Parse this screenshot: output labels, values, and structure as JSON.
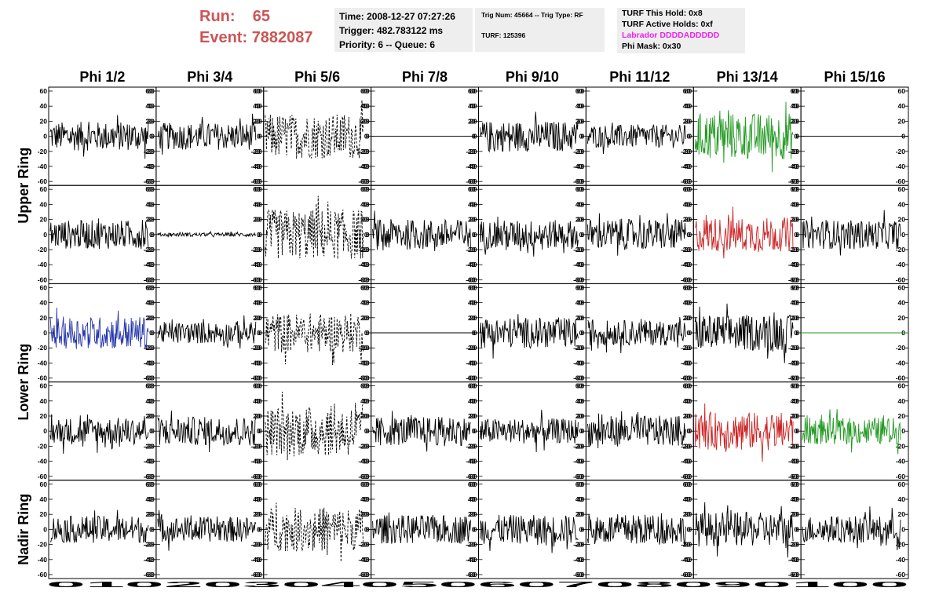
{
  "header": {
    "run_label": "Run:",
    "run_value": "65",
    "event_label": "Event:",
    "event_value": "7882087"
  },
  "info_box_1": {
    "time": "Time: 2008-12-27 07:27:26",
    "trigger": "Trigger: 482.783122 ms",
    "priority": "Priority: 6 -- Queue: 6"
  },
  "info_box_2": {
    "trig": "Trig Num: 45664 -- Trig Type: RF",
    "turf": "TURF: 125396"
  },
  "info_box_3": {
    "this_hold": "TURF This Hold: 0x8",
    "active_holds": "TURF Active Holds: 0xf",
    "labrador": "Labrador DDDDADDDDD",
    "phi_mask": "Phi Mask: 0x30"
  },
  "colors": {
    "header_red": "#cc5555",
    "labrador_magenta": "#ee22ee",
    "trace_black": "#000000",
    "trace_green": "#229922",
    "trace_red": "#cc2222",
    "trace_blue": "#2233aa"
  },
  "chart_data": {
    "type": "line",
    "columns": [
      "Phi 1/2",
      "Phi 3/4",
      "Phi 5/6",
      "Phi 7/8",
      "Phi 9/10",
      "Phi 11/12",
      "Phi 13/14",
      "Phi 15/16"
    ],
    "rows": [
      "Upper Ring",
      "Lower Ring",
      "Nadir Ring"
    ],
    "panel_rows": 5,
    "ylim": [
      -60,
      60
    ],
    "yticks": [
      -60,
      -40,
      -20,
      0,
      20,
      40,
      60
    ],
    "xlim": [
      0,
      100
    ],
    "xtick_labels": [
      "0",
      "10",
      "20",
      "30",
      "40",
      "50",
      "60",
      "70",
      "80",
      "90",
      "100"
    ],
    "bottom_axis_text": "0102030405060708090100",
    "grid": false,
    "panels": [
      [
        {
          "style": "solid",
          "color": "black",
          "amp": 16
        },
        {
          "style": "solid",
          "color": "black",
          "amp": 15
        },
        {
          "style": "dashed",
          "color": "black",
          "amp": 25
        },
        {
          "style": "flat",
          "color": "black",
          "amp": 0
        },
        {
          "style": "solid",
          "color": "black",
          "amp": 17
        },
        {
          "style": "solid",
          "color": "black",
          "amp": 13
        },
        {
          "style": "solid",
          "color": "green",
          "amp": 26
        },
        {
          "style": "flat",
          "color": "black",
          "amp": 0
        }
      ],
      [
        {
          "style": "solid",
          "color": "black",
          "amp": 16
        },
        {
          "style": "solid",
          "color": "black",
          "amp": 2
        },
        {
          "style": "dashed",
          "color": "black",
          "amp": 28
        },
        {
          "style": "solid",
          "color": "black",
          "amp": 17
        },
        {
          "style": "solid",
          "color": "black",
          "amp": 16
        },
        {
          "style": "solid",
          "color": "black",
          "amp": 17
        },
        {
          "style": "solid",
          "color": "red",
          "amp": 19
        },
        {
          "style": "solid",
          "color": "black",
          "amp": 16
        }
      ],
      [
        {
          "style": "solid",
          "color": "blue",
          "amp": 18
        },
        {
          "style": "solid",
          "color": "black",
          "amp": 12
        },
        {
          "style": "dashed",
          "color": "black",
          "amp": 22
        },
        {
          "style": "flat",
          "color": "black",
          "amp": 0
        },
        {
          "style": "solid",
          "color": "black",
          "amp": 17
        },
        {
          "style": "solid",
          "color": "black",
          "amp": 14
        },
        {
          "style": "solid",
          "color": "black",
          "amp": 20
        },
        {
          "style": "flat",
          "color": "green",
          "amp": 0
        }
      ],
      [
        {
          "style": "solid",
          "color": "black",
          "amp": 15
        },
        {
          "style": "solid",
          "color": "black",
          "amp": 16
        },
        {
          "style": "dashed",
          "color": "black",
          "amp": 28
        },
        {
          "style": "solid",
          "color": "black",
          "amp": 16
        },
        {
          "style": "solid",
          "color": "black",
          "amp": 14
        },
        {
          "style": "solid",
          "color": "black",
          "amp": 17
        },
        {
          "style": "solid",
          "color": "red",
          "amp": 21
        },
        {
          "style": "solid",
          "color": "green",
          "amp": 15
        }
      ],
      [
        {
          "style": "solid",
          "color": "black",
          "amp": 15
        },
        {
          "style": "solid",
          "color": "black",
          "amp": 14
        },
        {
          "style": "dashed",
          "color": "black",
          "amp": 24
        },
        {
          "style": "solid",
          "color": "black",
          "amp": 16
        },
        {
          "style": "solid",
          "color": "black",
          "amp": 16
        },
        {
          "style": "solid",
          "color": "black",
          "amp": 17
        },
        {
          "style": "solid",
          "color": "black",
          "amp": 19
        },
        {
          "style": "solid",
          "color": "black",
          "amp": 15
        }
      ]
    ]
  }
}
